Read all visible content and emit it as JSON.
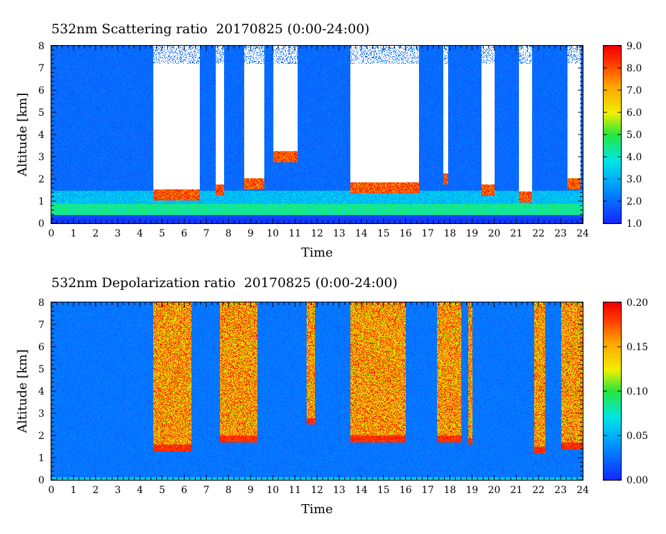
{
  "chart_data": [
    {
      "type": "heatmap",
      "title": "532nm Scattering ratio  20170825 (0:00-24:00)",
      "xlabel": "Time",
      "ylabel": "Altitude [km]",
      "xlim": [
        0,
        24
      ],
      "ylim": [
        0,
        8
      ],
      "x_ticks": [
        "0",
        "1",
        "2",
        "3",
        "4",
        "5",
        "6",
        "7",
        "8",
        "9",
        "10",
        "11",
        "12",
        "13",
        "14",
        "15",
        "16",
        "17",
        "18",
        "19",
        "20",
        "21",
        "22",
        "23",
        "24"
      ],
      "y_ticks": [
        "0",
        "1",
        "2",
        "3",
        "4",
        "5",
        "6",
        "7",
        "8"
      ],
      "colorbar": {
        "range": [
          1.0,
          9.0
        ],
        "ticks": [
          "1.0",
          "2.0",
          "3.0",
          "4.0",
          "5.0",
          "6.0",
          "7.0",
          "8.0",
          "9.0"
        ],
        "colormap": "blue-cyan-green-yellow-red"
      },
      "cloud_regions": [
        {
          "start": 4.6,
          "end": 6.7,
          "base_km": 1.3
        },
        {
          "start": 7.4,
          "end": 7.8,
          "base_km": 1.5
        },
        {
          "start": 8.7,
          "end": 9.6,
          "base_km": 1.8
        },
        {
          "start": 10.0,
          "end": 11.1,
          "base_km": 3.0
        },
        {
          "start": 13.5,
          "end": 16.6,
          "base_km": 1.6
        },
        {
          "start": 17.7,
          "end": 17.9,
          "base_km": 2.0
        },
        {
          "start": 19.4,
          "end": 20.0,
          "base_km": 1.5
        },
        {
          "start": 21.1,
          "end": 21.7,
          "base_km": 1.2
        },
        {
          "start": 23.3,
          "end": 23.9,
          "base_km": 1.8
        }
      ]
    },
    {
      "type": "heatmap",
      "title": "532nm Depolarization ratio  20170825 (0:00-24:00)",
      "xlabel": "Time",
      "ylabel": "Altitude [km]",
      "xlim": [
        0,
        24
      ],
      "ylim": [
        0,
        8
      ],
      "x_ticks": [
        "0",
        "1",
        "2",
        "3",
        "4",
        "5",
        "6",
        "7",
        "8",
        "9",
        "10",
        "11",
        "12",
        "13",
        "14",
        "15",
        "16",
        "17",
        "18",
        "19",
        "20",
        "21",
        "22",
        "23",
        "24"
      ],
      "y_ticks": [
        "0",
        "1",
        "2",
        "3",
        "4",
        "5",
        "6",
        "7",
        "8"
      ],
      "colorbar": {
        "range": [
          0.0,
          0.2
        ],
        "ticks": [
          "0.00",
          "0.05",
          "0.10",
          "0.15",
          "0.20"
        ],
        "colormap": "blue-cyan-green-yellow-red"
      },
      "high_depolarization_regions": [
        {
          "start": 4.6,
          "end": 6.3,
          "base_km": 1.6
        },
        {
          "start": 7.6,
          "end": 9.3,
          "base_km": 2.0
        },
        {
          "start": 11.5,
          "end": 11.9,
          "base_km": 2.8
        },
        {
          "start": 13.5,
          "end": 16.0,
          "base_km": 2.0
        },
        {
          "start": 17.4,
          "end": 18.5,
          "base_km": 2.0
        },
        {
          "start": 18.8,
          "end": 19.0,
          "base_km": 1.9
        },
        {
          "start": 21.8,
          "end": 22.3,
          "base_km": 1.5
        },
        {
          "start": 23.0,
          "end": 24.0,
          "base_km": 1.7
        }
      ]
    }
  ]
}
